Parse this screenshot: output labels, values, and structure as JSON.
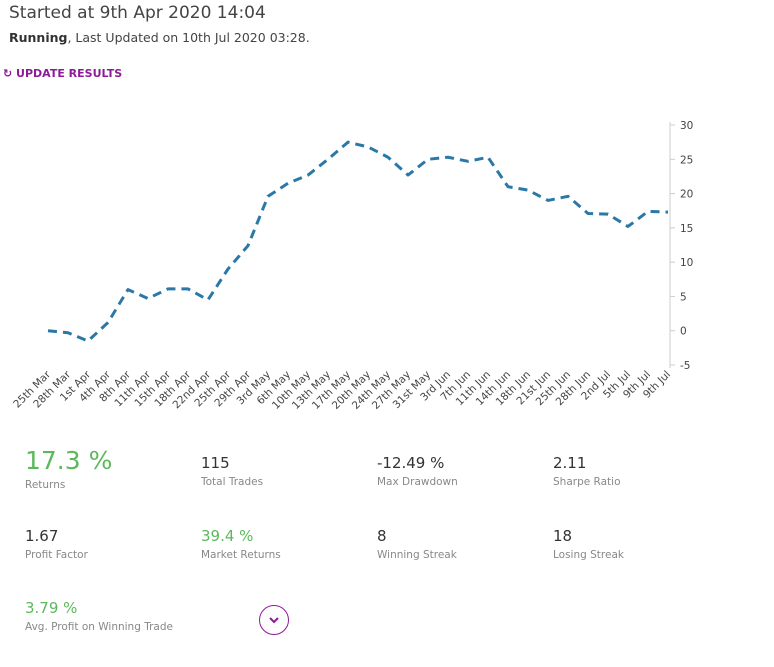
{
  "header": {
    "title": "Started at 9th Apr 2020 14:04",
    "status": "Running",
    "updated": ", Last Updated on 10th Jul 2020 03:28.",
    "button": "UPDATE RESULTS"
  },
  "chart_data": {
    "type": "line",
    "color": "#2b78a8",
    "categories": [
      "25th Mar",
      "28th Mar",
      "1st Apr",
      "4th Apr",
      "8th Apr",
      "11th Apr",
      "15th Apr",
      "18th Apr",
      "22nd Apr",
      "25th Apr",
      "29th Apr",
      "3rd May",
      "6th May",
      "10th May",
      "13th May",
      "17th May",
      "20th May",
      "24th May",
      "27th May",
      "31st May",
      "3rd Jun",
      "7th Jun",
      "11th Jun",
      "14th Jun",
      "18th Jun",
      "21st Jun",
      "25th Jun",
      "28th Jun",
      "2nd Jul",
      "5th Jul",
      "9th Jul",
      "9th Jul"
    ],
    "values": [
      0,
      -0.3,
      -1.5,
      1.2,
      6,
      4.7,
      6.1,
      6.1,
      4.5,
      9,
      12.4,
      19.6,
      21.5,
      22.7,
      25,
      27.5,
      26.8,
      25.3,
      22.7,
      25,
      25.3,
      24.7,
      25.3,
      21,
      20.5,
      19,
      19.6,
      17.1,
      17,
      15.2,
      17.4,
      17.3
    ],
    "ylim": [
      -5,
      30
    ],
    "yticks": [
      -5,
      0,
      5,
      10,
      15,
      20,
      25,
      30
    ]
  },
  "metrics": [
    {
      "value": "17.3 %",
      "label": "Returns"
    },
    {
      "value": "115",
      "label": "Total Trades"
    },
    {
      "value": "-12.49 %",
      "label": "Max Drawdown"
    },
    {
      "value": "2.11",
      "label": "Sharpe Ratio"
    },
    {
      "value": "1.67",
      "label": "Profit Factor"
    },
    {
      "value": "39.4 %",
      "label": "Market Returns"
    },
    {
      "value": "8",
      "label": "Winning Streak"
    },
    {
      "value": "18",
      "label": "Losing Streak"
    },
    {
      "value": "3.79 %",
      "label": "Avg. Profit on Winning Trade"
    }
  ]
}
